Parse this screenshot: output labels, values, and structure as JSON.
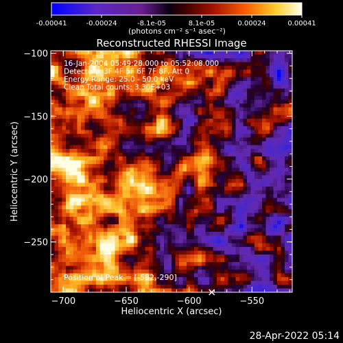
{
  "chart_data": {
    "type": "heatmap",
    "title": "Reconstructed RHESSI Image",
    "xlabel": "Heliocentric X (arcsec)",
    "ylabel": "Heliocentric Y (arcsec)",
    "x_range": [
      -710,
      -518
    ],
    "y_range": [
      -290,
      -98
    ],
    "x_ticks": [
      -700,
      -650,
      -600,
      -550
    ],
    "y_ticks": [
      -100,
      -150,
      -200,
      -250
    ],
    "colorbar": {
      "min": -0.00041,
      "max": 0.00041,
      "ticks": [
        "-0.00041",
        "-0.00024",
        "-8.1e-05",
        "8.1e-05",
        "0.00024",
        "0.00041"
      ],
      "unit_label": "(photons cm⁻² s⁻¹ asec⁻²)",
      "colormap": [
        "#0000ff",
        "#5a28c8",
        "#6a1e90",
        "#000000",
        "#8b0000",
        "#e84010",
        "#ff9a10",
        "#ffee60",
        "#ffffe8"
      ]
    },
    "annotations": [
      "16-Jan-2004 05:49:28.000 to 05:52:08.000",
      "Detectors: 3F 4F 5F 6F 7F 8F, Att 0",
      "Energy Range: 25.0 - 50.0 keV",
      "Clean    Total counts: 3.30E+03"
    ],
    "peak_label": "Position of Peak = [-582,-290]",
    "peak_position": [
      -582,
      -290
    ],
    "grid": false,
    "legend": "none"
  },
  "timestamp": "28-Apr-2022 05:14"
}
